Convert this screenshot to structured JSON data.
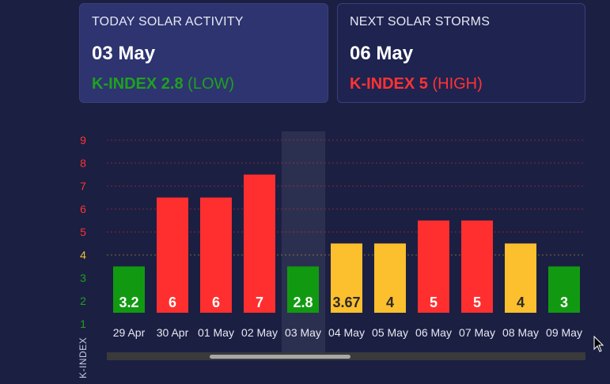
{
  "today": {
    "title": "TODAY SOLAR ACTIVITY",
    "date": "03 May",
    "kp_label": "K-INDEX 2.8",
    "kp_level": "(LOW)",
    "color": "#1ea21e"
  },
  "next": {
    "title": "NEXT SOLAR STORMS",
    "date": "06 May",
    "kp_label": "K-INDEX 5",
    "kp_level": "(HIGH)",
    "color": "#ff3333"
  },
  "chart_data": {
    "type": "bar",
    "categories": [
      "29 Apr",
      "30 Apr",
      "01 May",
      "02 May",
      "03 May",
      "04 May",
      "05 May",
      "06 May",
      "07 May",
      "08 May",
      "09 May"
    ],
    "values": [
      3.2,
      6,
      6,
      7,
      2.8,
      3.67,
      4,
      5,
      5,
      4,
      3
    ],
    "bar_values": [
      3.5,
      6.5,
      6.5,
      7.5,
      3.5,
      4.5,
      4.5,
      5.5,
      5.5,
      4.5,
      3.5
    ],
    "highlight_index": 4,
    "ylabel": "K-INDEX",
    "y_ticks": [
      1,
      2,
      3,
      4,
      5,
      6,
      7,
      8,
      9
    ],
    "y_tick_colors": {
      "1": "#1ea21e",
      "2": "#1ea21e",
      "3": "#1ea21e",
      "4": "#f5c030",
      "5": "#ff3333",
      "6": "#ff3333",
      "7": "#ff3333",
      "8": "#ff3333",
      "9": "#ff3333"
    },
    "ylim": [
      0.5,
      9.5
    ],
    "grid": true,
    "colors": {
      "low": "#119a11",
      "moderate": "#fcbf2e",
      "high": "#ff2f2f"
    }
  }
}
